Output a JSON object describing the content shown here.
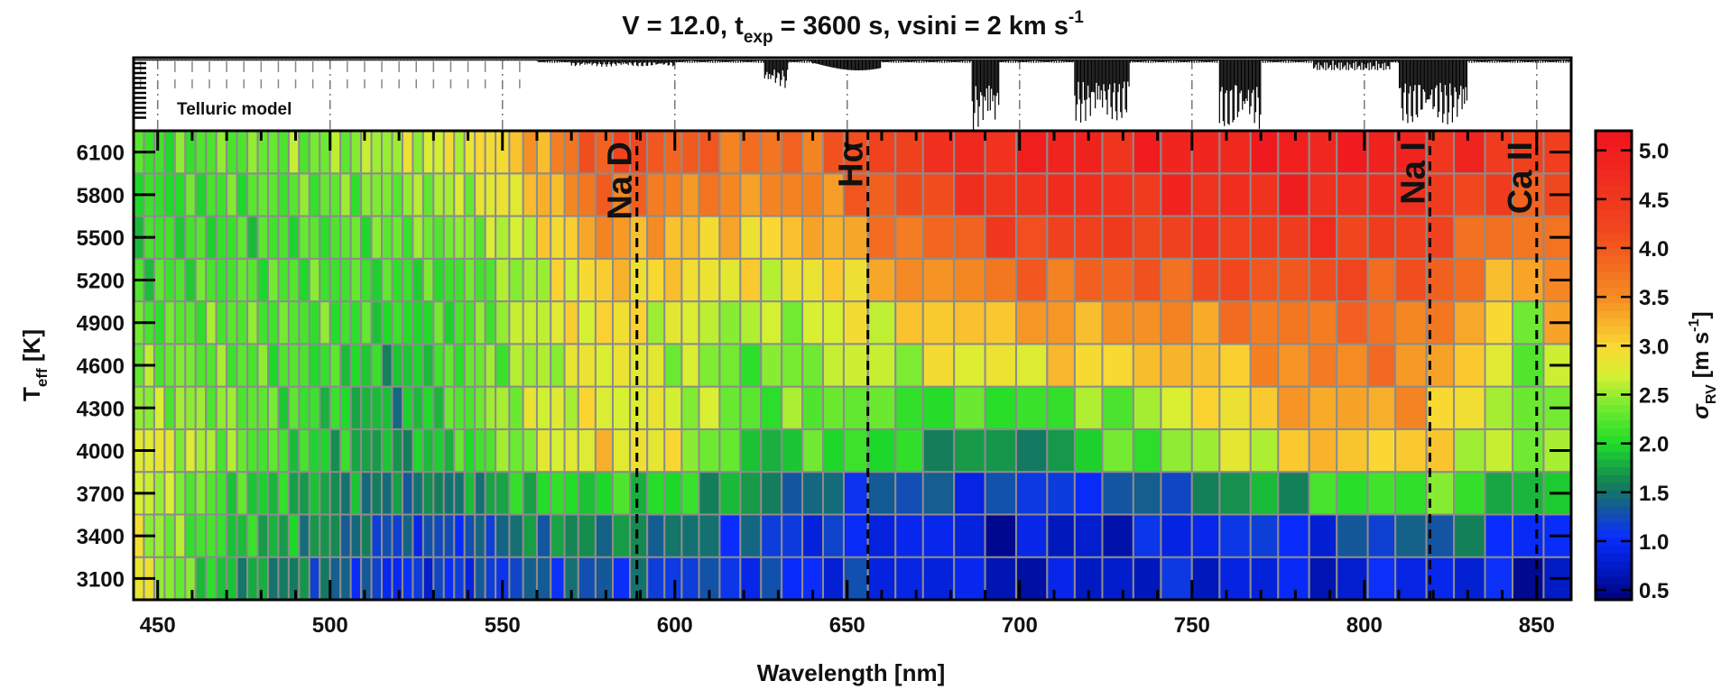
{
  "chart_data": {
    "type": "heatmap",
    "title_main": "V = 12.0, t",
    "title_sub": "exp",
    "title_rest": " = 3600 s, vsini = 2 km s",
    "title_sup": "-1",
    "xlabel": "Wavelength [nm]",
    "ylabel_main": "T",
    "ylabel_sub": "eff",
    "ylabel_rest": " [K]",
    "xlim": [
      443,
      860
    ],
    "x_ticks": [
      "450",
      "500",
      "550",
      "600",
      "650",
      "700",
      "750",
      "800",
      "850"
    ],
    "y_ticks": [
      "3100",
      "3400",
      "3700",
      "4000",
      "4300",
      "4600",
      "4900",
      "5200",
      "5500",
      "5800",
      "6100"
    ],
    "telluric_label": "Telluric model",
    "colorbar": {
      "label_sigma": "σ",
      "label_sub": "RV",
      "label_units": " [m s",
      "label_sup": "-1",
      "label_close": "]",
      "min": 0.4,
      "max": 5.2,
      "ticks": [
        "0.5",
        "1.0",
        "1.5",
        "2.0",
        "2.5",
        "3.0",
        "3.5",
        "4.0",
        "4.5",
        "5.0"
      ]
    },
    "lines": [
      {
        "name": "Na D",
        "wavelength": 589
      },
      {
        "name": "Hα",
        "wavelength": 656
      },
      {
        "name": "Na I",
        "wavelength": 819
      },
      {
        "name": "Ca II",
        "wavelength": 850
      }
    ],
    "column_edges": [
      443,
      446,
      449,
      452,
      455,
      458,
      461,
      464,
      467,
      470,
      473,
      476,
      479,
      482,
      485,
      488,
      491,
      494,
      497,
      500,
      503,
      506,
      509,
      512,
      515,
      518,
      521,
      524,
      527,
      530,
      533,
      536,
      539,
      542,
      545,
      548,
      552,
      556,
      560,
      564,
      568,
      572,
      577,
      582,
      587,
      592,
      597,
      602,
      607,
      613,
      619,
      625,
      631,
      637,
      643,
      649,
      656,
      664,
      672,
      681,
      690,
      699,
      708,
      716,
      724,
      733,
      741,
      750,
      758,
      767,
      775,
      784,
      792,
      801,
      809,
      818,
      826,
      835,
      843,
      852,
      860
    ],
    "temperatures": [
      3100,
      3400,
      3700,
      4000,
      4300,
      4600,
      4900,
      5200,
      5500,
      5800,
      6100
    ],
    "anchors_wavelength": [
      443,
      470,
      500,
      520,
      540,
      560,
      580,
      600,
      625,
      645,
      660,
      700,
      730,
      760,
      790,
      820,
      850,
      860
    ],
    "anchors_sigma": [
      [
        2.9,
        1.8,
        1.4,
        1.0,
        1.1,
        1.3,
        1.3,
        1.2,
        1.1,
        1.0,
        1.0,
        0.7,
        0.8,
        0.9,
        0.8,
        1.0,
        0.7,
        0.7
      ],
      [
        2.7,
        2.0,
        1.6,
        1.2,
        1.2,
        1.6,
        1.6,
        1.5,
        1.2,
        1.0,
        1.0,
        0.7,
        0.8,
        1.1,
        1.0,
        1.5,
        1.0,
        1.0
      ],
      [
        2.8,
        2.1,
        1.7,
        1.5,
        1.6,
        2.0,
        2.0,
        2.0,
        1.6,
        1.3,
        1.3,
        1.1,
        1.2,
        1.6,
        2.0,
        2.3,
        1.7,
        2.0
      ],
      [
        2.9,
        2.4,
        1.9,
        1.7,
        2.1,
        2.6,
        3.0,
        2.8,
        1.8,
        2.2,
        2.0,
        1.5,
        2.2,
        2.6,
        3.2,
        3.0,
        2.3,
        2.5
      ],
      [
        2.5,
        2.4,
        2.0,
        1.7,
        2.3,
        2.7,
        2.8,
        2.7,
        2.2,
        2.4,
        2.2,
        2.1,
        2.4,
        3.0,
        3.4,
        3.3,
        2.1,
        2.9
      ],
      [
        2.4,
        2.3,
        2.1,
        1.8,
        2.3,
        2.5,
        2.9,
        2.6,
        2.2,
        2.6,
        2.6,
        2.9,
        3.1,
        3.2,
        3.7,
        3.5,
        2.2,
        3.2
      ],
      [
        2.2,
        2.3,
        2.2,
        2.0,
        2.2,
        2.7,
        3.0,
        2.7,
        2.5,
        2.7,
        2.9,
        3.3,
        3.4,
        3.6,
        3.8,
        3.7,
        2.5,
        3.5
      ],
      [
        2.1,
        2.2,
        2.2,
        2.1,
        2.2,
        2.6,
        3.1,
        3.0,
        2.8,
        2.9,
        3.3,
        3.8,
        3.9,
        4.1,
        4.1,
        4.0,
        3.1,
        3.8
      ],
      [
        2.1,
        2.1,
        2.2,
        2.3,
        2.4,
        2.8,
        3.5,
        3.2,
        3.0,
        3.3,
        3.6,
        4.3,
        4.3,
        4.4,
        4.5,
        4.2,
        3.5,
        4.1
      ],
      [
        2.0,
        2.2,
        2.3,
        2.4,
        2.6,
        3.1,
        3.9,
        3.6,
        3.5,
        3.6,
        4.0,
        4.7,
        4.6,
        4.7,
        4.8,
        4.5,
        4.0,
        4.3
      ],
      [
        2.1,
        2.3,
        2.4,
        2.6,
        2.8,
        3.3,
        4.2,
        4.0,
        3.7,
        3.9,
        4.3,
        4.9,
        4.8,
        4.9,
        5.0,
        4.8,
        4.3,
        4.6
      ]
    ]
  }
}
